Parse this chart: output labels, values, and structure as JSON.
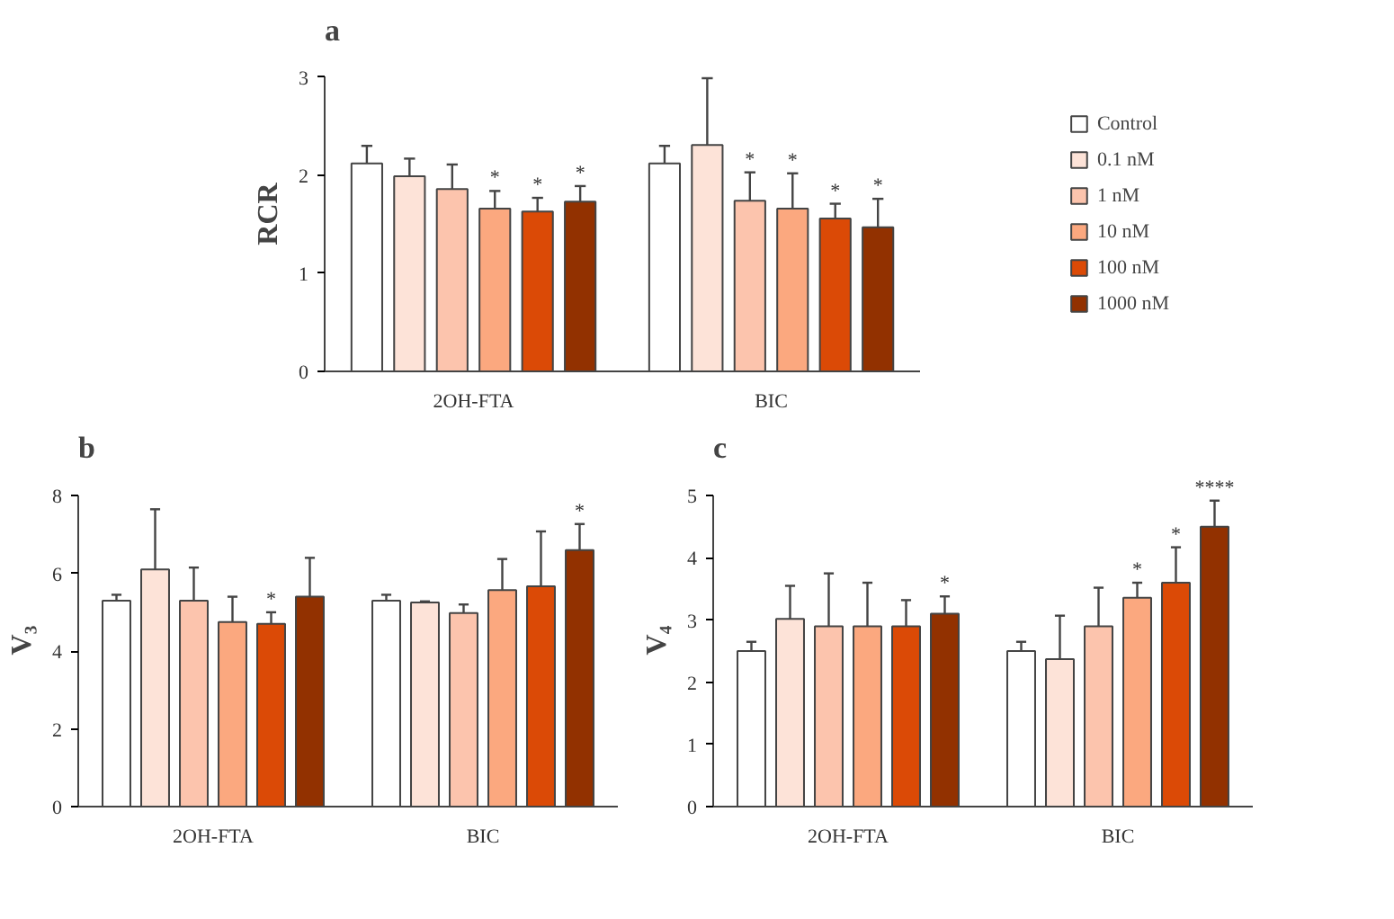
{
  "chart_data": [
    {
      "type": "bar",
      "title": "a",
      "ylabel": "RCR",
      "categories": [
        "2OH-FTA",
        "BIC"
      ],
      "ylim": [
        0,
        3
      ],
      "yticks": [
        0,
        1,
        2,
        3
      ],
      "grid": false,
      "legend": "right",
      "series": [
        {
          "name": "Control",
          "color": "#ffffff",
          "values": [
            2.12,
            2.12
          ],
          "errors": [
            0.18,
            0.18
          ],
          "value_labels": [
            null,
            null
          ]
        },
        {
          "name": "0.1 nM",
          "color": "#fde3d8",
          "values": [
            1.99,
            2.31
          ],
          "errors": [
            0.18,
            0.68
          ],
          "value_labels": [
            null,
            null
          ]
        },
        {
          "name": "1 nM",
          "color": "#fcc4ad",
          "values": [
            1.86,
            1.74
          ],
          "errors": [
            0.25,
            0.29
          ],
          "value_labels": [
            null,
            "*"
          ]
        },
        {
          "name": "10 nM",
          "color": "#fba87f",
          "values": [
            1.66,
            1.66
          ],
          "errors": [
            0.18,
            0.36
          ],
          "value_labels": [
            "*",
            "*"
          ]
        },
        {
          "name": "100 nM",
          "color": "#db4a06",
          "values": [
            1.63,
            1.56
          ],
          "errors": [
            0.14,
            0.15
          ],
          "value_labels": [
            "*",
            "*"
          ]
        },
        {
          "name": "1000 nM",
          "color": "#923100",
          "values": [
            1.73,
            1.47
          ],
          "errors": [
            0.16,
            0.29
          ],
          "value_labels": [
            "*",
            "*"
          ]
        }
      ]
    },
    {
      "type": "bar",
      "title": "b",
      "ylabel": "V₃",
      "categories": [
        "2OH-FTA",
        "BIC"
      ],
      "ylim": [
        0,
        8
      ],
      "yticks": [
        0,
        2,
        4,
        6,
        8
      ],
      "grid": false,
      "series": [
        {
          "color": "#ffffff",
          "values": [
            5.3,
            5.3
          ],
          "errors": [
            0.15,
            0.15
          ],
          "value_labels": [
            null,
            null
          ]
        },
        {
          "color": "#fde3d8",
          "values": [
            6.1,
            5.25
          ],
          "errors": [
            1.55,
            0.03
          ],
          "value_labels": [
            null,
            null
          ]
        },
        {
          "color": "#fcc4ad",
          "values": [
            5.3,
            4.98
          ],
          "errors": [
            0.85,
            0.22
          ],
          "value_labels": [
            null,
            null
          ]
        },
        {
          "color": "#fba87f",
          "values": [
            4.75,
            5.57
          ],
          "errors": [
            0.65,
            0.8
          ],
          "value_labels": [
            null,
            null
          ]
        },
        {
          "color": "#db4a06",
          "values": [
            4.7,
            5.67
          ],
          "errors": [
            0.3,
            1.41
          ],
          "value_labels": [
            "*",
            null
          ]
        },
        {
          "color": "#923100",
          "values": [
            5.4,
            6.6
          ],
          "errors": [
            1.0,
            0.67
          ],
          "value_labels": [
            null,
            "*"
          ]
        }
      ]
    },
    {
      "type": "bar",
      "title": "c",
      "ylabel": "V₄",
      "categories": [
        "2OH-FTA",
        "BIC"
      ],
      "ylim": [
        0,
        5
      ],
      "yticks": [
        0,
        1,
        2,
        3,
        4,
        5
      ],
      "grid": false,
      "series": [
        {
          "color": "#ffffff",
          "values": [
            2.5,
            2.5
          ],
          "errors": [
            0.15,
            0.15
          ],
          "value_labels": [
            null,
            null
          ]
        },
        {
          "color": "#fde3d8",
          "values": [
            3.02,
            2.37
          ],
          "errors": [
            0.53,
            0.7
          ],
          "value_labels": [
            null,
            null
          ]
        },
        {
          "color": "#fcc4ad",
          "values": [
            2.9,
            2.9
          ],
          "errors": [
            0.85,
            0.62
          ],
          "value_labels": [
            null,
            null
          ]
        },
        {
          "color": "#fba87f",
          "values": [
            2.9,
            3.36
          ],
          "errors": [
            0.7,
            0.24
          ],
          "value_labels": [
            null,
            "*"
          ]
        },
        {
          "color": "#db4a06",
          "values": [
            2.9,
            3.6
          ],
          "errors": [
            0.42,
            0.57
          ],
          "value_labels": [
            null,
            "*"
          ]
        },
        {
          "color": "#923100",
          "values": [
            3.1,
            4.5
          ],
          "errors": [
            0.28,
            0.42
          ],
          "value_labels": [
            "*",
            "****"
          ]
        }
      ]
    }
  ]
}
